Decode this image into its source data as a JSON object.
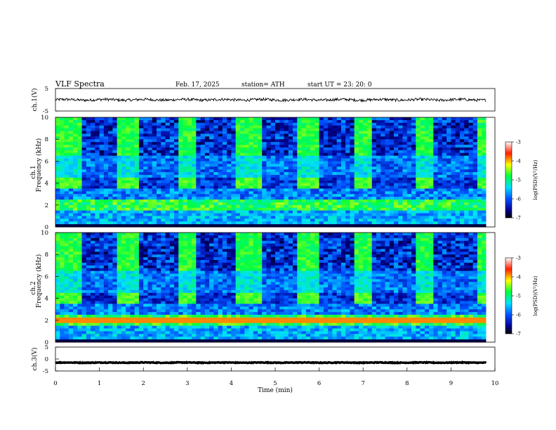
{
  "header": {
    "title": "VLF  Spectra",
    "date": "Feb. 17, 2025",
    "station": "station= ATH",
    "start": "start  UT  =    23: 20: 0"
  },
  "colors": {
    "spectrogram_low": "#00008f",
    "spectrogram_mid": "#00ff66",
    "spectrogram_high": "#ff0000",
    "trace": "#000000"
  },
  "chart_data": [
    {
      "type": "line",
      "name": "ch1-waveform",
      "ylabel": "ch.1(V)",
      "ylim": [
        -5,
        5
      ],
      "yticks": [
        "5",
        "-5"
      ],
      "xlim": [
        0,
        10
      ],
      "level": 0,
      "noise_amplitude": 0.6
    },
    {
      "type": "heatmap",
      "name": "ch1-spectrogram",
      "ylabel_top": "ch.1",
      "ylabel": "Frequency  (kHz)",
      "ylim": [
        0,
        10
      ],
      "yticks": [
        "0",
        "2",
        "4",
        "6",
        "8",
        "10"
      ],
      "xlim": [
        0,
        9.8
      ],
      "colorbar": {
        "label": "log(PSD)(V²/Hz)",
        "range": [
          -7,
          -3
        ],
        "ticks": [
          "-3",
          "-4",
          "-5",
          "-6",
          "-7"
        ]
      },
      "pulse_intervals_min": [
        [
          0,
          0.55
        ],
        [
          1.45,
          1.95
        ],
        [
          2.8,
          3.2
        ],
        [
          4.15,
          4.7
        ],
        [
          5.5,
          6.0
        ],
        [
          6.8,
          7.2
        ],
        [
          8.2,
          8.6
        ],
        [
          9.6,
          9.8
        ]
      ],
      "pulse_band_khz": [
        3.4,
        4.5
      ]
    },
    {
      "type": "heatmap",
      "name": "ch2-spectrogram",
      "ylabel_top": "ch.2",
      "ylabel": "Frequency  (kHz)",
      "ylim": [
        0,
        10
      ],
      "yticks": [
        "0",
        "2",
        "4",
        "6",
        "8",
        "10"
      ],
      "xlim": [
        0,
        9.8
      ],
      "colorbar": {
        "label": "log(PSD)(V²/Hz)",
        "range": [
          -7,
          -3
        ],
        "ticks": [
          "-3",
          "-4",
          "-5",
          "-6",
          "-7"
        ]
      },
      "pulse_intervals_min": [
        [
          0,
          0.55
        ],
        [
          1.45,
          1.95
        ],
        [
          2.8,
          3.2
        ],
        [
          4.15,
          4.7
        ],
        [
          5.5,
          6.0
        ],
        [
          6.8,
          7.2
        ],
        [
          8.2,
          8.6
        ],
        [
          9.6,
          9.8
        ]
      ],
      "pulse_band_khz": [
        3.4,
        4.5
      ]
    },
    {
      "type": "line",
      "name": "ch3-waveform",
      "ylabel": "ch.3(V)",
      "ylim": [
        -5,
        5
      ],
      "yticks": [
        "5",
        "0",
        "-5"
      ],
      "xlim": [
        0,
        10
      ],
      "level": -1.5,
      "noise_amplitude": 0.15,
      "xlabel": "Time  (min)",
      "xticks": [
        "0",
        "1",
        "2",
        "3",
        "4",
        "5",
        "6",
        "7",
        "8",
        "9",
        "10"
      ]
    }
  ]
}
